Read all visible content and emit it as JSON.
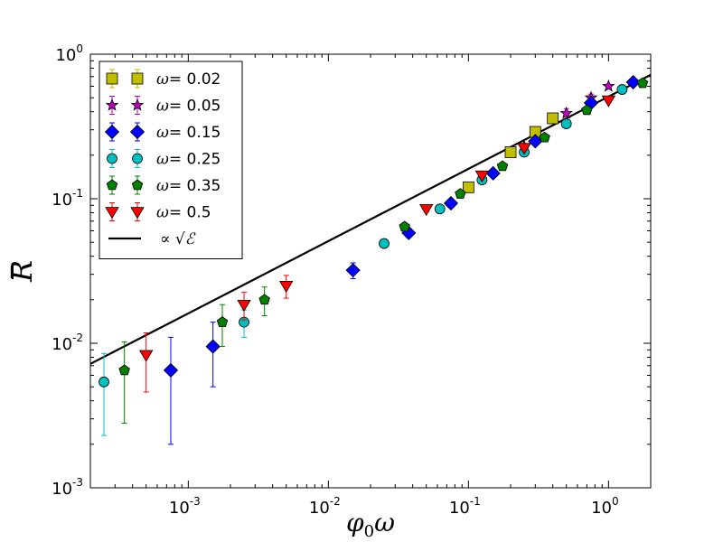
{
  "chart_data": {
    "type": "scatter",
    "x_scale": "log",
    "y_scale": "log",
    "xlim": [
      0.0002,
      2.0
    ],
    "ylim": [
      0.001,
      1.0
    ],
    "xlabel": "φ0ω",
    "ylabel": "R",
    "x_ticks": [
      {
        "value": 0.001,
        "base": "10",
        "exp": "-3"
      },
      {
        "value": 0.01,
        "base": "10",
        "exp": "-2"
      },
      {
        "value": 0.1,
        "base": "10",
        "exp": "-1"
      },
      {
        "value": 1.0,
        "base": "10",
        "exp": "0"
      }
    ],
    "y_ticks": [
      {
        "value": 0.001,
        "base": "10",
        "exp": "-3"
      },
      {
        "value": 0.01,
        "base": "10",
        "exp": "-2"
      },
      {
        "value": 0.1,
        "base": "10",
        "exp": "-1"
      },
      {
        "value": 1.0,
        "base": "10",
        "exp": "0"
      }
    ],
    "legend_position": "top-left",
    "fit_line": {
      "label": "∝ √ℰ",
      "color": "#000000",
      "points": [
        [
          0.0002,
          0.0072
        ],
        [
          2.0,
          0.72
        ]
      ]
    },
    "series": [
      {
        "omega_symbol": "ω",
        "label": "= 0.02",
        "marker": "square",
        "color": "#bfbf00",
        "points": [
          {
            "x": 0.1,
            "y": 0.12,
            "lo": 0.11,
            "hi": 0.13
          },
          {
            "x": 0.2,
            "y": 0.21,
            "lo": 0.2,
            "hi": 0.22
          },
          {
            "x": 0.3,
            "y": 0.29,
            "lo": 0.28,
            "hi": 0.3
          },
          {
            "x": 0.4,
            "y": 0.36,
            "lo": 0.35,
            "hi": 0.37
          }
        ]
      },
      {
        "omega_symbol": "ω",
        "label": "= 0.05",
        "marker": "star",
        "color": "#bf00bf",
        "points": [
          {
            "x": 0.25,
            "y": 0.23,
            "lo": 0.22,
            "hi": 0.24
          },
          {
            "x": 0.5,
            "y": 0.39,
            "lo": 0.35,
            "hi": 0.42
          },
          {
            "x": 0.75,
            "y": 0.5,
            "lo": 0.47,
            "hi": 0.53
          },
          {
            "x": 1.0,
            "y": 0.6,
            "lo": 0.58,
            "hi": 0.62
          }
        ]
      },
      {
        "omega_symbol": "ω",
        "label": "= 0.15",
        "marker": "diamond",
        "color": "#0000ff",
        "points": [
          {
            "x": 0.00075,
            "y": 0.0065,
            "lo": 0.002,
            "hi": 0.011
          },
          {
            "x": 0.0015,
            "y": 0.0095,
            "lo": 0.005,
            "hi": 0.014
          },
          {
            "x": 0.015,
            "y": 0.032,
            "lo": 0.028,
            "hi": 0.036
          },
          {
            "x": 0.0375,
            "y": 0.058,
            "lo": 0.054,
            "hi": 0.062
          },
          {
            "x": 0.075,
            "y": 0.093,
            "lo": 0.089,
            "hi": 0.097
          },
          {
            "x": 0.15,
            "y": 0.15,
            "lo": 0.145,
            "hi": 0.155
          },
          {
            "x": 0.3,
            "y": 0.25,
            "lo": 0.24,
            "hi": 0.26
          },
          {
            "x": 0.75,
            "y": 0.46,
            "lo": 0.45,
            "hi": 0.47
          },
          {
            "x": 1.5,
            "y": 0.64,
            "lo": 0.63,
            "hi": 0.65
          }
        ]
      },
      {
        "omega_symbol": "ω",
        "label": "= 0.25",
        "marker": "circle",
        "color": "#00bfbf",
        "points": [
          {
            "x": 0.00025,
            "y": 0.0054,
            "lo": 0.0023,
            "hi": 0.0085
          },
          {
            "x": 0.0025,
            "y": 0.014,
            "lo": 0.011,
            "hi": 0.017
          },
          {
            "x": 0.025,
            "y": 0.049,
            "lo": 0.046,
            "hi": 0.052
          },
          {
            "x": 0.0625,
            "y": 0.085,
            "lo": 0.082,
            "hi": 0.088
          },
          {
            "x": 0.125,
            "y": 0.135,
            "lo": 0.13,
            "hi": 0.14
          },
          {
            "x": 0.25,
            "y": 0.21,
            "lo": 0.2,
            "hi": 0.22
          },
          {
            "x": 0.5,
            "y": 0.33,
            "lo": 0.32,
            "hi": 0.34
          },
          {
            "x": 1.25,
            "y": 0.57,
            "lo": 0.56,
            "hi": 0.58
          }
        ]
      },
      {
        "omega_symbol": "ω",
        "label": "= 0.35",
        "marker": "pentagon",
        "color": "#007f00",
        "points": [
          {
            "x": 0.00035,
            "y": 0.0065,
            "lo": 0.0028,
            "hi": 0.0102
          },
          {
            "x": 0.00175,
            "y": 0.014,
            "lo": 0.0095,
            "hi": 0.0185
          },
          {
            "x": 0.0035,
            "y": 0.02,
            "lo": 0.0155,
            "hi": 0.0245
          },
          {
            "x": 0.035,
            "y": 0.064,
            "lo": 0.06,
            "hi": 0.068
          },
          {
            "x": 0.0875,
            "y": 0.108,
            "lo": 0.104,
            "hi": 0.112
          },
          {
            "x": 0.175,
            "y": 0.168,
            "lo": 0.163,
            "hi": 0.173
          },
          {
            "x": 0.35,
            "y": 0.265,
            "lo": 0.258,
            "hi": 0.272
          },
          {
            "x": 0.7,
            "y": 0.41,
            "lo": 0.4,
            "hi": 0.42
          },
          {
            "x": 1.75,
            "y": 0.63,
            "lo": 0.62,
            "hi": 0.64
          }
        ]
      },
      {
        "omega_symbol": "ω",
        "label": "= 0.5",
        "marker": "triangle-down",
        "color": "#ff0000",
        "points": [
          {
            "x": 0.0005,
            "y": 0.0083,
            "lo": 0.0046,
            "hi": 0.0118
          },
          {
            "x": 0.0025,
            "y": 0.0185,
            "lo": 0.0145,
            "hi": 0.0225
          },
          {
            "x": 0.005,
            "y": 0.025,
            "lo": 0.0205,
            "hi": 0.0295
          },
          {
            "x": 0.05,
            "y": 0.085,
            "lo": 0.081,
            "hi": 0.089
          },
          {
            "x": 0.125,
            "y": 0.145,
            "lo": 0.14,
            "hi": 0.15
          },
          {
            "x": 0.25,
            "y": 0.225,
            "lo": 0.218,
            "hi": 0.232
          },
          {
            "x": 1.0,
            "y": 0.48,
            "lo": 0.47,
            "hi": 0.49
          }
        ]
      }
    ]
  }
}
